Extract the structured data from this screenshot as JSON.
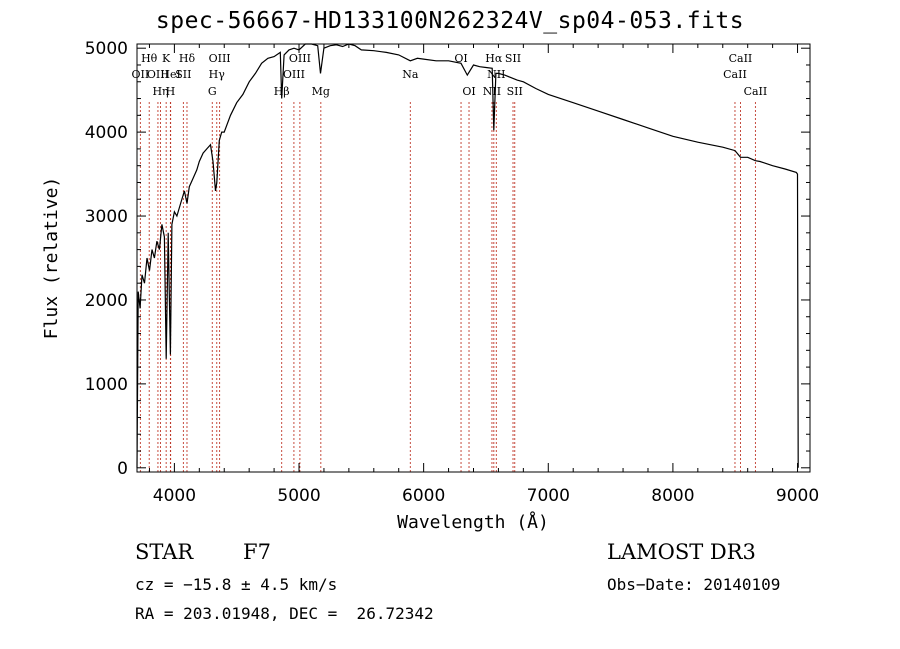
{
  "title": "spec-56667-HD133100N262324V_sp04-053.fits",
  "chart_data": {
    "type": "line",
    "title": "spec-56667-HD133100N262324V_sp04-053.fits",
    "xlabel": "Wavelength (Å)",
    "ylabel": "Flux (relative)",
    "xlim": [
      3700,
      9100
    ],
    "ylim": [
      -50,
      5050
    ],
    "xticks": [
      4000,
      5000,
      6000,
      7000,
      8000,
      9000
    ],
    "yticks": [
      0,
      1000,
      2000,
      3000,
      4000,
      5000
    ],
    "series": [
      {
        "name": "spectrum",
        "x": [
          3700,
          3710,
          3725,
          3740,
          3760,
          3780,
          3800,
          3820,
          3840,
          3860,
          3880,
          3900,
          3920,
          3934,
          3950,
          3968,
          3980,
          4000,
          4020,
          4050,
          4080,
          4101,
          4120,
          4150,
          4180,
          4200,
          4230,
          4260,
          4290,
          4310,
          4330,
          4340,
          4360,
          4380,
          4400,
          4450,
          4500,
          4550,
          4600,
          4650,
          4700,
          4750,
          4800,
          4850,
          4861,
          4880,
          4920,
          4960,
          5000,
          5050,
          5100,
          5150,
          5172,
          5200,
          5250,
          5300,
          5350,
          5400,
          5450,
          5500,
          5600,
          5700,
          5800,
          5893,
          5950,
          6000,
          6100,
          6200,
          6300,
          6350,
          6400,
          6450,
          6500,
          6550,
          6563,
          6580,
          6600,
          6650,
          6700,
          6750,
          6800,
          6900,
          7000,
          7200,
          7400,
          7600,
          7800,
          8000,
          8200,
          8400,
          8498,
          8542,
          8600,
          8662,
          8700,
          8800,
          8900,
          8990,
          9000,
          9005
        ],
        "values": [
          0,
          2100,
          1900,
          2300,
          2200,
          2500,
          2350,
          2600,
          2500,
          2700,
          2600,
          2900,
          2750,
          1300,
          2800,
          1350,
          2900,
          3050,
          3000,
          3150,
          3300,
          3150,
          3350,
          3450,
          3550,
          3650,
          3750,
          3800,
          3850,
          3650,
          3300,
          3400,
          3900,
          4000,
          4000,
          4200,
          4350,
          4450,
          4600,
          4700,
          4820,
          4880,
          4900,
          4950,
          4400,
          4920,
          4980,
          5000,
          4980,
          5050,
          5050,
          5030,
          4700,
          5000,
          5030,
          5040,
          5020,
          5050,
          5030,
          4980,
          4970,
          4950,
          4920,
          4850,
          4880,
          4870,
          4850,
          4850,
          4820,
          4680,
          4800,
          4780,
          4770,
          4760,
          4020,
          4700,
          4700,
          4680,
          4650,
          4620,
          4600,
          4520,
          4450,
          4350,
          4250,
          4150,
          4050,
          3950,
          3880,
          3820,
          3780,
          3700,
          3700,
          3660,
          3650,
          3600,
          3560,
          3520,
          3500,
          0
        ]
      }
    ],
    "lines": [
      {
        "name": "OII",
        "wavelength": 3727,
        "row": 2
      },
      {
        "name": "Hθ",
        "wavelength": 3798,
        "row": 1
      },
      {
        "name": "OIII",
        "wavelength": 3868,
        "row": 2
      },
      {
        "name": "Hη",
        "wavelength": 3889,
        "row": 3
      },
      {
        "name": "K",
        "wavelength": 3934,
        "row": 1
      },
      {
        "name": "HeI",
        "wavelength": 3970,
        "row": 2
      },
      {
        "name": "H",
        "wavelength": 3968,
        "row": 3
      },
      {
        "name": "Hδ",
        "wavelength": 4101,
        "row": 1
      },
      {
        "name": "SII",
        "wavelength": 4072,
        "row": 2
      },
      {
        "name": "OIII",
        "wavelength": 4363,
        "row": 1
      },
      {
        "name": "Hγ",
        "wavelength": 4340,
        "row": 2
      },
      {
        "name": "G",
        "wavelength": 4304,
        "row": 3
      },
      {
        "name": "Hβ",
        "wavelength": 4861,
        "row": 3
      },
      {
        "name": "OIII",
        "wavelength": 4959,
        "row": 2
      },
      {
        "name": "OIII",
        "wavelength": 5007,
        "row": 1
      },
      {
        "name": "Mg",
        "wavelength": 5175,
        "row": 3
      },
      {
        "name": "Na",
        "wavelength": 5893,
        "row": 2
      },
      {
        "name": "OI",
        "wavelength": 6300,
        "row": 1
      },
      {
        "name": "OI",
        "wavelength": 6364,
        "row": 3
      },
      {
        "name": "NII",
        "wavelength": 6548,
        "row": 3
      },
      {
        "name": "Hα",
        "wavelength": 6563,
        "row": 1
      },
      {
        "name": "NII",
        "wavelength": 6583,
        "row": 2
      },
      {
        "name": "SII",
        "wavelength": 6717,
        "row": 1
      },
      {
        "name": "SII",
        "wavelength": 6731,
        "row": 3
      },
      {
        "name": "CaII",
        "wavelength": 8498,
        "row": 2
      },
      {
        "name": "CaII",
        "wavelength": 8542,
        "row": 1
      },
      {
        "name": "CaII",
        "wavelength": 8662,
        "row": 3
      }
    ]
  },
  "info": {
    "class": "STAR",
    "subclass": "F7",
    "survey": "LAMOST DR3",
    "cz": "cz = −15.8 ± 4.5 km/s",
    "obs_date": "Obs−Date: 20140109",
    "coords": "RA = 203.01948, DEC =  26.72342"
  }
}
